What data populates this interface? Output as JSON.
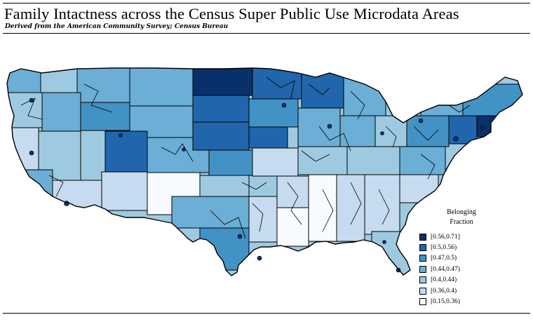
{
  "header": {
    "title": "Family Intactness across the Census Super Public Use Microdata Areas",
    "subtitle": "Derived from the American Community Survey; Census Bureau"
  },
  "legend": {
    "title_line1": "Belonging",
    "title_line2": "Fraction",
    "items": [
      {
        "label": "[0.56,0.71]",
        "color": "#08306b"
      },
      {
        "label": "[0.5,0.56)",
        "color": "#2166ac"
      },
      {
        "label": "[0.47,0.5)",
        "color": "#4292c6"
      },
      {
        "label": "[0.44,0.47)",
        "color": "#6baed6"
      },
      {
        "label": "[0.4,0.44)",
        "color": "#9ecae1"
      },
      {
        "label": "[0.36,0.4)",
        "color": "#c6dbef"
      },
      {
        "label": "[0.15,0.36)",
        "color": "#f7fbff"
      }
    ]
  },
  "map": {
    "region": "United States (lower 48)",
    "boundary_color": "#000000"
  }
}
